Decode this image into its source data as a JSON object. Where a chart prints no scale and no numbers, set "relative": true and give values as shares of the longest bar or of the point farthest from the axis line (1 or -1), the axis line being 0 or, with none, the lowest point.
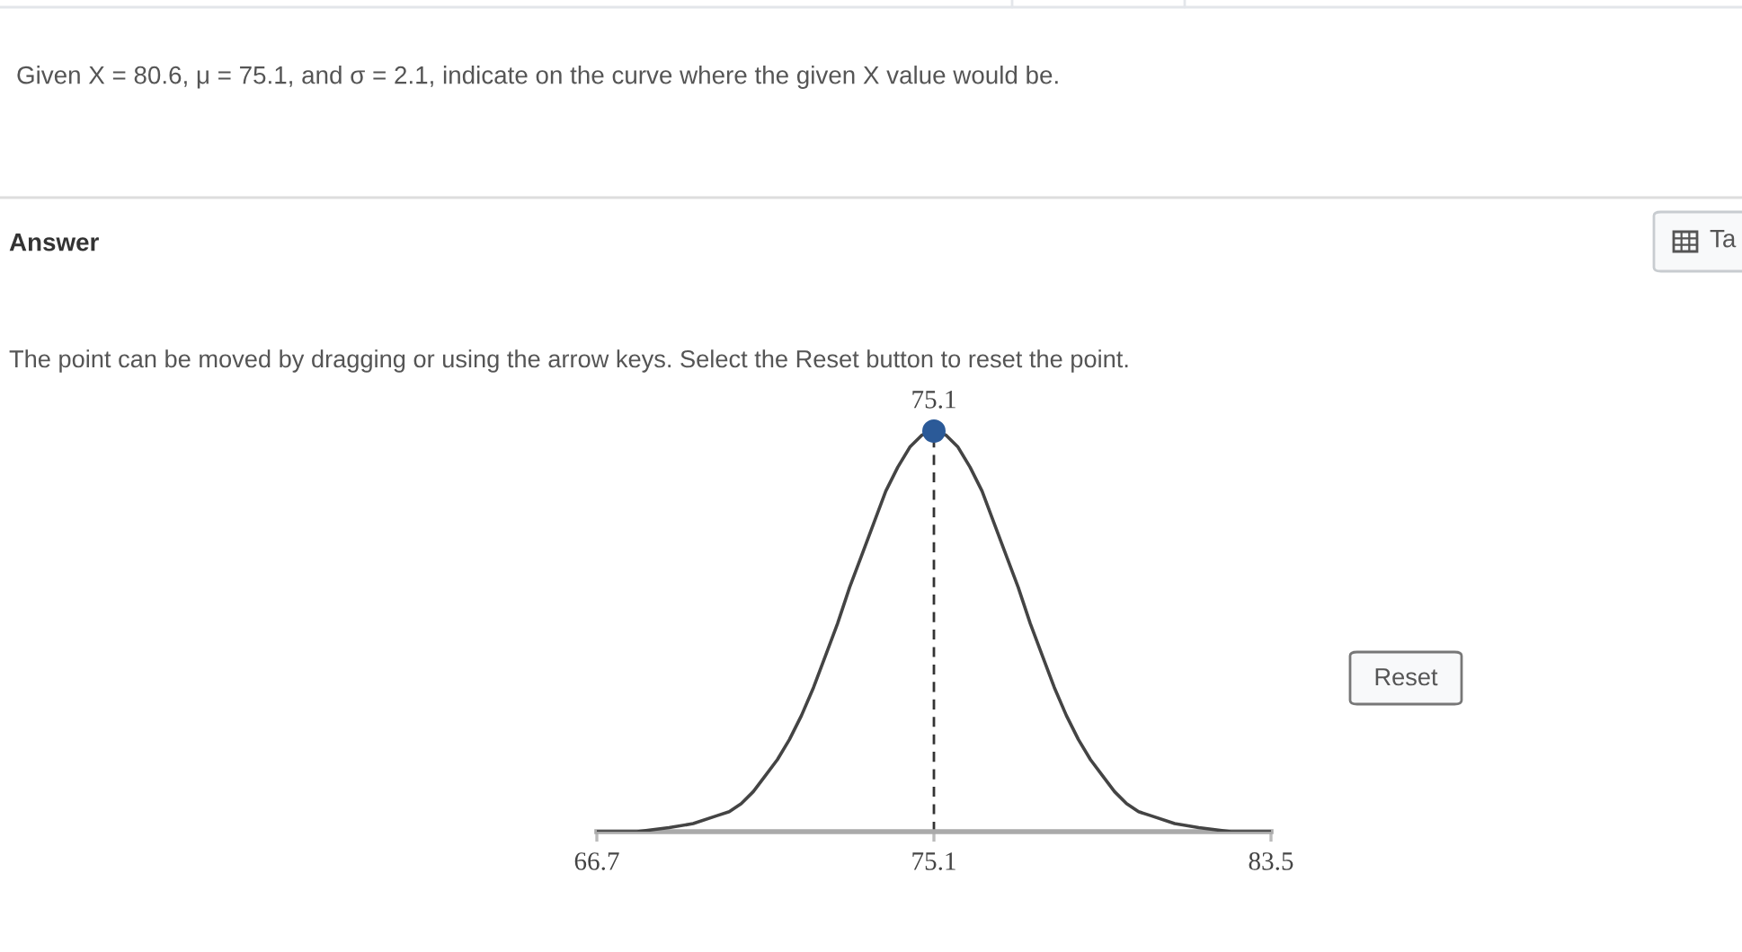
{
  "chart_data": {
    "type": "line",
    "title": "Given X = 80.6, μ = 75.1, and σ = 2.1, indicate on the curve where the given X value would be.",
    "relative": true,
    "xlim": [
      66.7,
      83.5
    ],
    "xticks": [
      66.7,
      75.1,
      83.5
    ],
    "tick_labels": "x",
    "series": [
      {
        "color": "#444444",
        "x": [
          66.7,
          67.7,
          68.5,
          69.1,
          69.7,
          70.0,
          70.3,
          70.6,
          70.9,
          71.2,
          71.5,
          71.8,
          72.1,
          72.4,
          72.7,
          73.0,
          73.3,
          73.6,
          73.9,
          74.2,
          74.5,
          74.8,
          75.1,
          75.4,
          75.7,
          76.0,
          76.3,
          76.6,
          76.9,
          77.2,
          77.5,
          77.8,
          78.1,
          78.4,
          78.7,
          79.0,
          79.3,
          79.6,
          79.9,
          80.2,
          80.5,
          81.1,
          81.7,
          82.5,
          83.5
        ],
        "values": [
          0,
          0,
          0.01,
          0.02,
          0.04,
          0.05,
          0.07,
          0.1,
          0.14,
          0.18,
          0.23,
          0.29,
          0.36,
          0.44,
          0.52,
          0.61,
          0.69,
          0.77,
          0.85,
          0.91,
          0.96,
          0.99,
          1,
          0.99,
          0.96,
          0.91,
          0.85,
          0.77,
          0.69,
          0.61,
          0.52,
          0.44,
          0.36,
          0.29,
          0.23,
          0.18,
          0.14,
          0.1,
          0.07,
          0.05,
          0.04,
          0.02,
          0.01,
          0,
          0
        ]
      },
      {
        "type": "scatter",
        "color": "#2b5a98",
        "marker": "circle",
        "x": [
          75.1
        ],
        "values": [
          1
        ]
      }
    ],
    "ref_lines": [
      {
        "axis": "x",
        "value": 75.1,
        "line_style": "dashed",
        "color": "#333333"
      }
    ],
    "annotations": [
      "Answer",
      "The point can be moved by dragging or using the arrow keys. Select the Reset button to reset the point.",
      "Reset",
      "Ta",
      {
        "text": "75.1",
        "x": 75.1,
        "y": 1
      }
    ]
  }
}
